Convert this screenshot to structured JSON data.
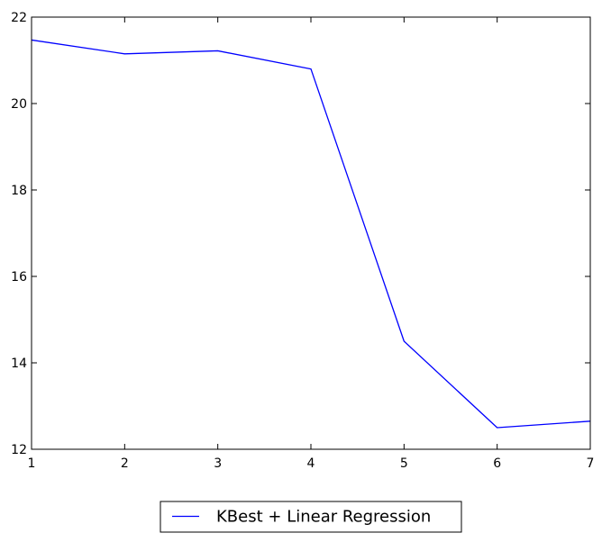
{
  "chart_data": {
    "type": "line",
    "title": "",
    "xlabel": "",
    "ylabel": "",
    "xlim": [
      1,
      7
    ],
    "ylim": [
      12,
      22
    ],
    "x_ticks": [
      1,
      2,
      3,
      4,
      5,
      6,
      7
    ],
    "y_ticks": [
      12,
      14,
      16,
      18,
      20,
      22
    ],
    "grid": false,
    "legend_position": "bottom-center-outside",
    "series": [
      {
        "name": "KBest + Linear Regression",
        "color": "#0000ff",
        "x": [
          1,
          2,
          3,
          4,
          5,
          6,
          7
        ],
        "y": [
          21.47,
          21.15,
          21.22,
          20.8,
          14.5,
          12.5,
          12.65
        ]
      }
    ]
  }
}
